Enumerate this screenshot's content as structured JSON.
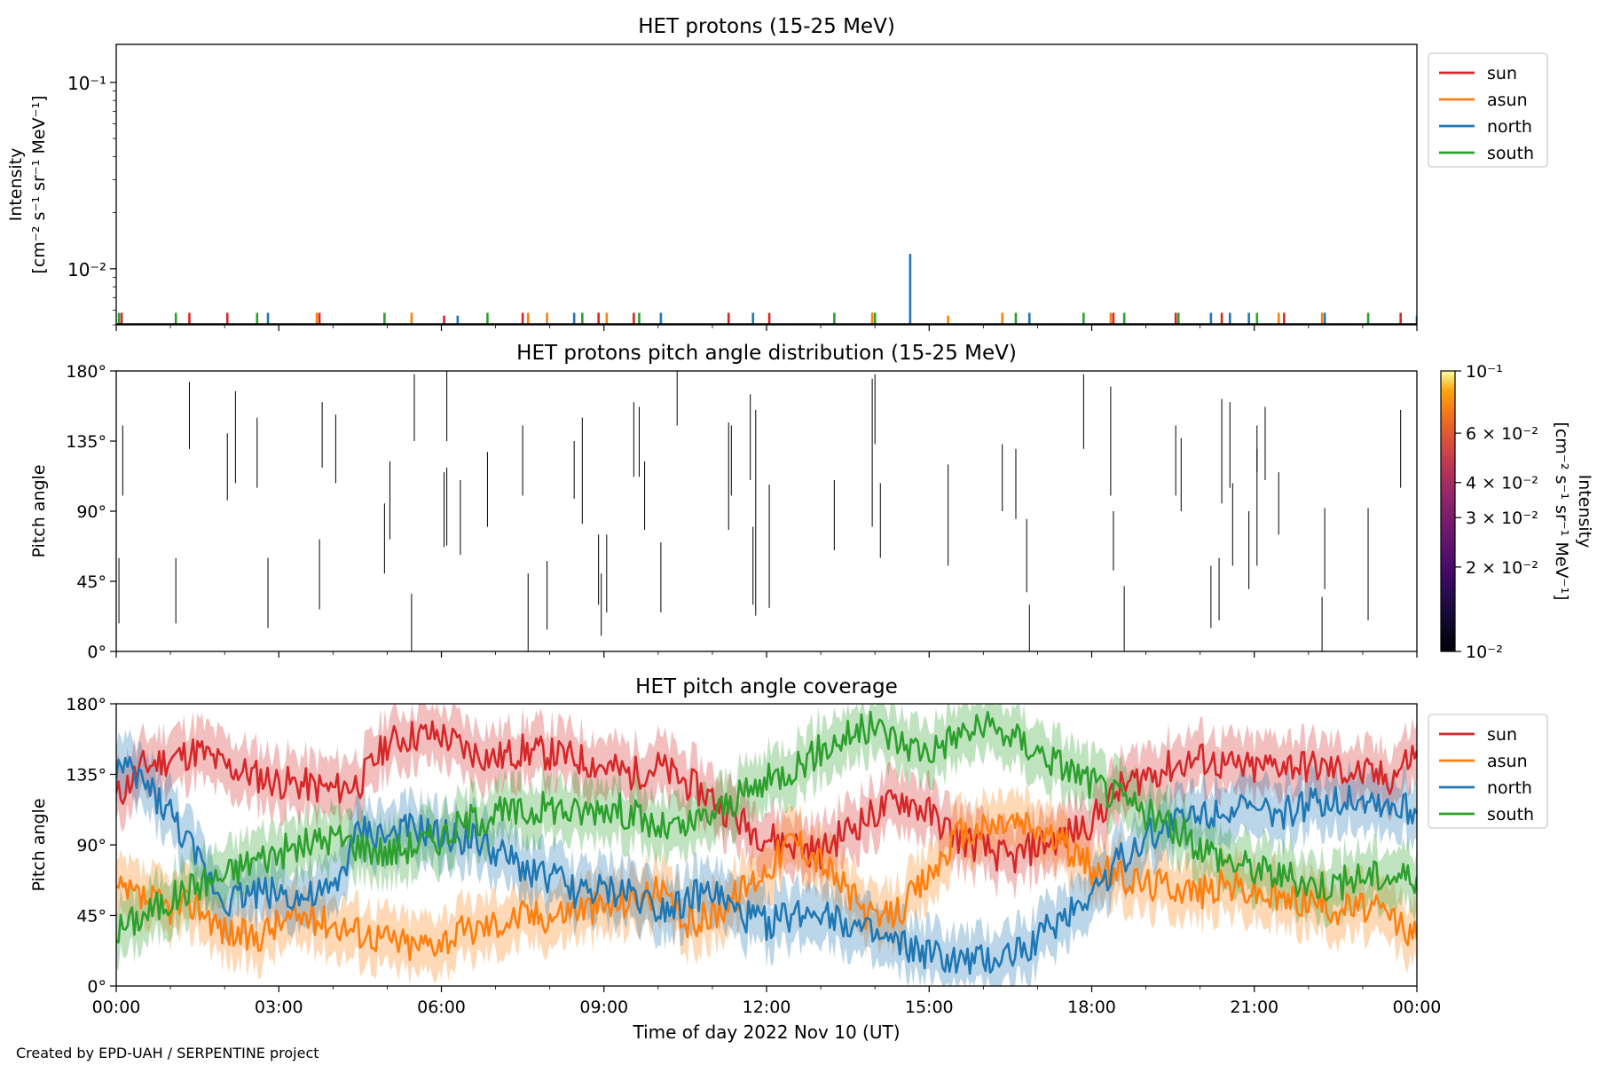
{
  "figure": {
    "footer": "Created by EPD-UAH / SERPENTINE project",
    "xlabel": "Time of day 2022 Nov 10 (UT)",
    "xticks": [
      "00:00",
      "03:00",
      "06:00",
      "09:00",
      "12:00",
      "15:00",
      "18:00",
      "21:00",
      "00:00"
    ]
  },
  "chart_data": [
    {
      "type": "bar",
      "title": "HET protons (15-25 MeV)",
      "ylabel_line1": "Intensity",
      "ylabel_line2": "[cm⁻² s⁻¹ sr⁻¹ MeV⁻¹]",
      "yscale": "log",
      "ylim": [
        0.005,
        0.16
      ],
      "xlim_hours": [
        0,
        24
      ],
      "ytick_labels": [
        "10⁻¹",
        "10⁻²"
      ],
      "yticks": [
        0.1,
        0.01
      ],
      "legend": {
        "placement": "outside-right-top",
        "entries": [
          "sun",
          "asun",
          "north",
          "south"
        ]
      },
      "colors": {
        "sun": "#d62728",
        "asun": "#ff7f0e",
        "north": "#1f77b4",
        "south": "#2ca02c"
      },
      "series": [
        {
          "name": "sun",
          "events": [
            [
              0.1,
              0.0058
            ],
            [
              1.35,
              0.0058
            ],
            [
              2.05,
              0.0058
            ],
            [
              3.75,
              0.0058
            ],
            [
              6.05,
              0.0056
            ],
            [
              7.5,
              0.0058
            ],
            [
              8.9,
              0.0058
            ],
            [
              9.55,
              0.0058
            ],
            [
              11.3,
              0.0058
            ],
            [
              12.05,
              0.0058
            ],
            [
              18.4,
              0.0058
            ],
            [
              19.55,
              0.0058
            ],
            [
              20.4,
              0.0058
            ],
            [
              21.55,
              0.0058
            ],
            [
              23.7,
              0.0058
            ]
          ]
        },
        {
          "name": "asun",
          "events": [
            [
              3.7,
              0.0058
            ],
            [
              5.45,
              0.0058
            ],
            [
              7.6,
              0.0058
            ],
            [
              7.95,
              0.0058
            ],
            [
              9.05,
              0.0058
            ],
            [
              13.95,
              0.0058
            ],
            [
              15.35,
              0.0056
            ],
            [
              16.35,
              0.0058
            ],
            [
              18.35,
              0.0058
            ],
            [
              21.45,
              0.0058
            ],
            [
              22.25,
              0.0058
            ]
          ]
        },
        {
          "name": "north",
          "events": [
            [
              2.8,
              0.0058
            ],
            [
              6.3,
              0.0056
            ],
            [
              8.45,
              0.0058
            ],
            [
              10.05,
              0.0058
            ],
            [
              11.75,
              0.0058
            ],
            [
              14.65,
              0.012
            ],
            [
              16.85,
              0.0058
            ],
            [
              20.2,
              0.0058
            ],
            [
              20.55,
              0.0058
            ],
            [
              20.9,
              0.0058
            ],
            [
              22.3,
              0.0058
            ],
            [
              24.0,
              0.0056
            ]
          ]
        },
        {
          "name": "south",
          "events": [
            [
              0.05,
              0.0058
            ],
            [
              1.1,
              0.0058
            ],
            [
              2.6,
              0.0058
            ],
            [
              4.95,
              0.0058
            ],
            [
              6.85,
              0.0058
            ],
            [
              8.6,
              0.0058
            ],
            [
              9.65,
              0.0058
            ],
            [
              13.25,
              0.0058
            ],
            [
              14.0,
              0.0058
            ],
            [
              16.6,
              0.0058
            ],
            [
              17.85,
              0.0058
            ],
            [
              18.6,
              0.0058
            ],
            [
              19.6,
              0.0058
            ],
            [
              21.05,
              0.0058
            ],
            [
              23.1,
              0.0058
            ]
          ]
        }
      ]
    },
    {
      "type": "heatmap",
      "title": "HET protons pitch angle distribution (15-25 MeV)",
      "ylabel": "Pitch angle",
      "ylim": [
        0,
        180
      ],
      "xlim_hours": [
        0,
        24
      ],
      "ytick_labels": [
        "0°",
        "45°",
        "90°",
        "135°",
        "180°"
      ],
      "yticks": [
        0,
        45,
        90,
        135,
        180
      ],
      "colorbar": {
        "label": "Intensity [cm⁻² s⁻¹ sr⁻¹ MeV⁻¹]",
        "label_line1": "Intensity",
        "label_line2": "[cm⁻² s⁻¹ sr⁻¹ MeV⁻¹]",
        "scale": "log",
        "range": [
          0.01,
          0.1
        ],
        "colormap": "inferno",
        "ticks": [
          0.01,
          0.02,
          0.03,
          0.04,
          0.06,
          0.1
        ],
        "tick_labels": [
          "10⁻²",
          "2 × 10⁻²",
          "3 × 10⁻²",
          "4 × 10⁻²",
          "6 × 10⁻²",
          "10⁻¹"
        ]
      },
      "segments": [
        [
          0.05,
          18,
          60
        ],
        [
          0.12,
          100,
          145
        ],
        [
          1.1,
          18,
          60
        ],
        [
          1.35,
          130,
          173
        ],
        [
          2.05,
          97,
          140
        ],
        [
          2.2,
          108,
          167
        ],
        [
          2.6,
          105,
          150
        ],
        [
          2.8,
          15,
          60
        ],
        [
          3.75,
          27,
          72
        ],
        [
          3.8,
          118,
          160
        ],
        [
          4.05,
          108,
          152
        ],
        [
          4.95,
          50,
          95
        ],
        [
          5.05,
          72,
          122
        ],
        [
          5.45,
          0,
          37
        ],
        [
          5.5,
          135,
          178
        ],
        [
          6.05,
          67,
          115
        ],
        [
          6.1,
          68,
          118
        ],
        [
          6.1,
          135,
          180
        ],
        [
          6.35,
          62,
          110
        ],
        [
          6.85,
          80,
          128
        ],
        [
          7.5,
          100,
          145
        ],
        [
          7.6,
          0,
          50
        ],
        [
          7.95,
          14,
          58
        ],
        [
          8.45,
          98,
          135
        ],
        [
          8.6,
          82,
          150
        ],
        [
          8.9,
          30,
          75
        ],
        [
          8.95,
          10,
          50
        ],
        [
          9.05,
          25,
          75
        ],
        [
          9.55,
          112,
          160
        ],
        [
          9.65,
          112,
          157
        ],
        [
          9.75,
          78,
          122
        ],
        [
          10.05,
          25,
          70
        ],
        [
          10.35,
          145,
          180
        ],
        [
          11.3,
          78,
          147
        ],
        [
          11.35,
          100,
          145
        ],
        [
          11.75,
          30,
          80
        ],
        [
          11.7,
          110,
          165
        ],
        [
          11.8,
          23,
          155
        ],
        [
          12.05,
          28,
          107
        ],
        [
          13.25,
          65,
          110
        ],
        [
          13.95,
          80,
          175
        ],
        [
          14.0,
          133,
          178
        ],
        [
          14.1,
          60,
          108
        ],
        [
          15.35,
          55,
          120
        ],
        [
          16.35,
          90,
          133
        ],
        [
          16.6,
          85,
          130
        ],
        [
          16.85,
          0,
          30
        ],
        [
          16.8,
          38,
          85
        ],
        [
          17.85,
          130,
          178
        ],
        [
          18.35,
          100,
          170
        ],
        [
          18.4,
          52,
          90
        ],
        [
          18.6,
          0,
          42
        ],
        [
          19.55,
          100,
          145
        ],
        [
          19.65,
          90,
          137
        ],
        [
          20.2,
          15,
          55
        ],
        [
          20.35,
          20,
          60
        ],
        [
          20.4,
          95,
          162
        ],
        [
          20.55,
          105,
          160
        ],
        [
          20.6,
          55,
          108
        ],
        [
          20.9,
          40,
          90
        ],
        [
          21.05,
          55,
          130
        ],
        [
          21.05,
          115,
          145
        ],
        [
          21.2,
          110,
          157
        ],
        [
          21.45,
          75,
          115
        ],
        [
          22.25,
          0,
          35
        ],
        [
          22.3,
          40,
          92
        ],
        [
          23.1,
          20,
          92
        ],
        [
          23.7,
          105,
          155
        ],
        [
          24.0,
          30,
          82
        ]
      ]
    },
    {
      "type": "line",
      "title": "HET pitch angle coverage",
      "ylabel": "Pitch angle",
      "ylim": [
        0,
        180
      ],
      "xlim_hours": [
        0,
        24
      ],
      "ytick_labels": [
        "0°",
        "45°",
        "90°",
        "135°",
        "180°"
      ],
      "yticks": [
        0,
        45,
        90,
        135,
        180
      ],
      "legend": {
        "placement": "outside-right-top",
        "entries": [
          "sun",
          "asun",
          "north",
          "south"
        ]
      },
      "colors": {
        "sun": "#d62728",
        "asun": "#ff7f0e",
        "north": "#1f77b4",
        "south": "#2ca02c"
      },
      "x": [
        0,
        0.5,
        1,
        1.5,
        2,
        2.5,
        3,
        3.5,
        4,
        4.5,
        5,
        5.5,
        6,
        6.5,
        7,
        7.5,
        8,
        8.5,
        9,
        9.5,
        10,
        10.5,
        11,
        11.5,
        12,
        12.5,
        13,
        13.5,
        14,
        14.5,
        15,
        15.5,
        16,
        16.5,
        17,
        17.5,
        18,
        18.5,
        19,
        19.5,
        20,
        20.5,
        21,
        21.5,
        22,
        22.5,
        23,
        23.5,
        24
      ],
      "series": [
        {
          "name": "sun",
          "values": [
            120,
            140,
            145,
            150,
            140,
            135,
            130,
            128,
            125,
            130,
            155,
            160,
            160,
            150,
            145,
            150,
            148,
            145,
            140,
            135,
            140,
            130,
            120,
            105,
            95,
            90,
            85,
            100,
            110,
            120,
            110,
            95,
            88,
            80,
            90,
            95,
            105,
            125,
            135,
            140,
            145,
            140,
            138,
            142,
            140,
            138,
            135,
            132,
            150
          ]
        },
        {
          "name": "asun",
          "values": [
            60,
            55,
            50,
            52,
            35,
            30,
            40,
            45,
            40,
            35,
            30,
            25,
            30,
            35,
            40,
            45,
            45,
            50,
            50,
            55,
            60,
            40,
            45,
            60,
            75,
            95,
            80,
            60,
            40,
            50,
            70,
            95,
            100,
            105,
            100,
            90,
            75,
            70,
            65,
            65,
            60,
            65,
            60,
            55,
            55,
            50,
            50,
            45,
            30
          ]
        },
        {
          "name": "north",
          "values": [
            140,
            130,
            110,
            80,
            55,
            60,
            60,
            55,
            60,
            100,
            95,
            100,
            95,
            95,
            85,
            75,
            70,
            60,
            60,
            60,
            50,
            55,
            60,
            45,
            40,
            45,
            50,
            40,
            30,
            25,
            20,
            15,
            15,
            20,
            30,
            45,
            60,
            80,
            95,
            105,
            110,
            115,
            110,
            110,
            115,
            120,
            120,
            115,
            110
          ]
        },
        {
          "name": "south",
          "values": [
            35,
            45,
            55,
            65,
            70,
            80,
            85,
            90,
            95,
            90,
            85,
            90,
            95,
            105,
            110,
            110,
            115,
            110,
            115,
            110,
            100,
            100,
            110,
            120,
            130,
            140,
            150,
            160,
            165,
            155,
            150,
            160,
            165,
            160,
            150,
            140,
            130,
            120,
            110,
            100,
            90,
            80,
            75,
            70,
            65,
            65,
            70,
            70,
            70
          ]
        }
      ],
      "band_halfwidth_deg": 18
    }
  ]
}
